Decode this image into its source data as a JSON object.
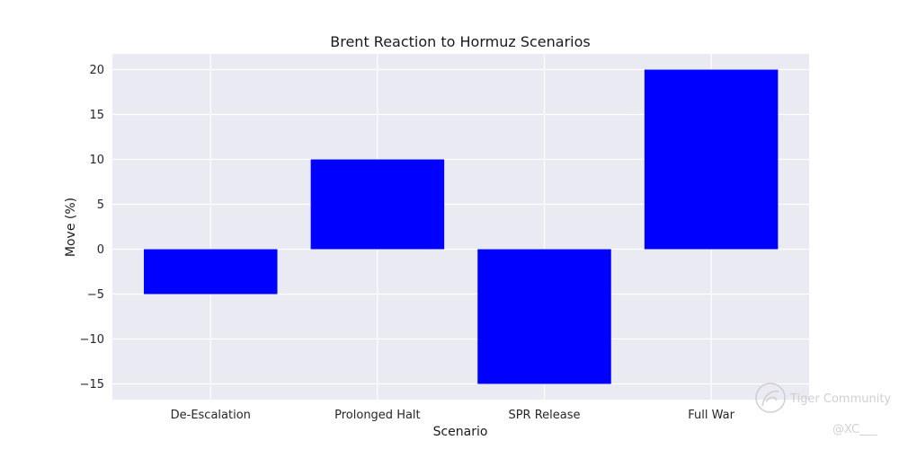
{
  "chart_data": {
    "type": "bar",
    "title": "Brent Reaction to Hormuz Scenarios",
    "xlabel": "Scenario",
    "ylabel": "Move (%)",
    "categories": [
      "De-Escalation",
      "Prolonged Halt",
      "SPR Release",
      "Full War"
    ],
    "values": [
      -5,
      10,
      -15,
      20
    ],
    "ylim": [
      -16.75,
      21.75
    ],
    "yticks": [
      -15,
      -10,
      -5,
      0,
      5,
      10,
      15,
      20
    ],
    "ytick_labels": [
      "−15",
      "−10",
      "−5",
      "0",
      "5",
      "10",
      "15",
      "20"
    ],
    "grid": true,
    "legend": "none",
    "colors": {
      "bar": "#0000ff",
      "plot_background": "#eaeaf2",
      "grid": "#ffffff"
    }
  },
  "watermark": {
    "brand": "Tiger Community",
    "handle": "@XC___",
    "icon": "tiger-community-logo-icon"
  }
}
